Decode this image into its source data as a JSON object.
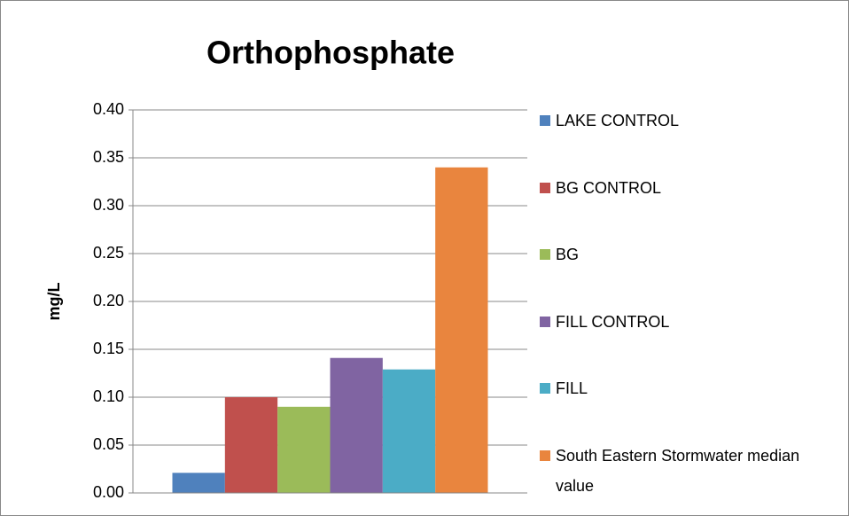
{
  "chart_data": {
    "type": "bar",
    "title": "Orthophosphate",
    "y_label": "mg/L",
    "categories": [
      null
    ],
    "series": [
      {
        "name": "LAKE CONTROL",
        "color": "#4f81bd",
        "values": [
          0.021
        ]
      },
      {
        "name": "BG CONTROL",
        "color": "#c0504d",
        "values": [
          0.1
        ]
      },
      {
        "name": "BG",
        "color": "#9bbb59",
        "values": [
          0.09
        ]
      },
      {
        "name": "FILL CONTROL",
        "color": "#8064a2",
        "values": [
          0.141
        ]
      },
      {
        "name": "FILL",
        "color": "#4bacc6",
        "values": [
          0.129
        ]
      },
      {
        "name": "South Eastern Stormwater median value",
        "color": "#e9853e",
        "values": [
          0.34
        ]
      }
    ],
    "ylim": [
      0,
      0.4
    ],
    "yticks": [
      {
        "value": 0,
        "label": "0.00"
      },
      {
        "value": 0.05,
        "label": "0.05"
      },
      {
        "value": 0.1,
        "label": "0.10"
      },
      {
        "value": 0.15,
        "label": "0.15"
      },
      {
        "value": 0.2,
        "label": "0.20"
      },
      {
        "value": 0.25,
        "label": "0.25"
      },
      {
        "value": 0.3,
        "label": "0.30"
      },
      {
        "value": 0.35,
        "label": "0.35"
      },
      {
        "value": 0.4,
        "label": "0.40"
      }
    ],
    "grid": true,
    "legend": "right"
  }
}
